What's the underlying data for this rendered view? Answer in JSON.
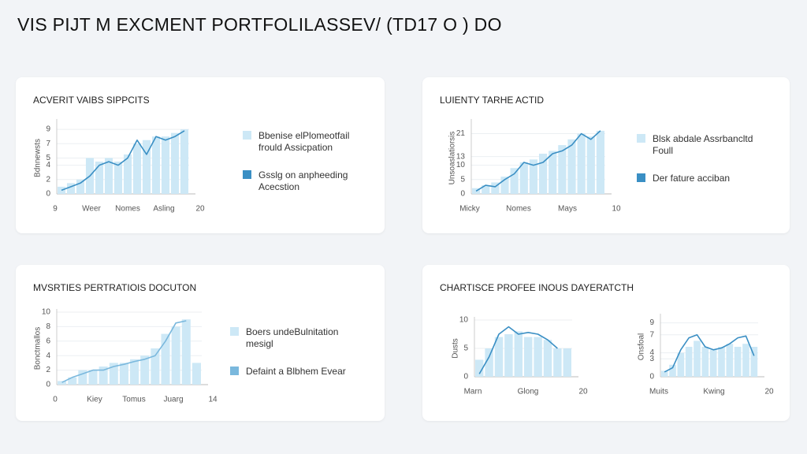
{
  "page_title": "VIS PIJT M EXCMENT PORTFOLILASSEV/ (TD17 O ) DO",
  "chart_data": [
    {
      "type": "bar_line",
      "title": "ACVERIT VAIBS SIPPCITS",
      "ylabel": "Bdnnewsts",
      "xtick_labels": [
        "9",
        "Weer",
        "Nomes",
        "Asling",
        "20"
      ],
      "ylim": [
        0,
        10
      ],
      "yticks": [
        0,
        2,
        4,
        5,
        7,
        9
      ],
      "series": [
        {
          "name": "Bbenise elPlomeotfail frould Assicpation",
          "color": "#cde8f6",
          "kind": "bar",
          "values": [
            1,
            1.5,
            2,
            5,
            4.5,
            5,
            4.5,
            5.5,
            7,
            7.5,
            8,
            8,
            8.5,
            9
          ]
        },
        {
          "name": "Gsslg on anpheeding Acecstion",
          "color": "#3a8fc4",
          "kind": "line",
          "values": [
            0.5,
            1,
            1.5,
            2.5,
            4,
            4.5,
            4,
            5,
            7.5,
            5.5,
            8,
            7.5,
            8,
            8.8
          ]
        }
      ]
    },
    {
      "type": "bar_line",
      "title": "LUIENTY TARHE ACTID",
      "ylabel": "Unsoaslatiorsis",
      "xtick_labels": [
        "Micky",
        "Nomes",
        "Mays",
        "10"
      ],
      "ylim": [
        0,
        25
      ],
      "yticks": [
        0,
        5,
        10,
        13,
        21
      ],
      "series": [
        {
          "name": "Blsk abdale Assrbancltd Foull",
          "color": "#cde8f6",
          "kind": "bar",
          "values": [
            2,
            3,
            4,
            6,
            9,
            11,
            12,
            14,
            15,
            17,
            19,
            21,
            20,
            22
          ]
        },
        {
          "name": "Der fature acciban",
          "color": "#3a8fc4",
          "kind": "line",
          "values": [
            1,
            3,
            2.5,
            5,
            7,
            11,
            10,
            11,
            14,
            15,
            17,
            21,
            19,
            22
          ]
        }
      ]
    },
    {
      "type": "bar_line",
      "title": "MVSRTIES PERTRATIOIS DOCUTON",
      "ylabel": "Bonctmallos",
      "xtick_labels": [
        "0",
        "Kiey",
        "Tomus",
        "Juarg",
        "14"
      ],
      "ylim": [
        0,
        10
      ],
      "yticks": [
        0,
        2,
        4,
        6,
        8,
        10
      ],
      "series": [
        {
          "name": "Boers undeBulnitation mesigl",
          "color": "#cde8f6",
          "kind": "bar",
          "values": [
            0.5,
            1,
            2,
            2,
            2.5,
            3,
            3,
            3.5,
            4,
            5,
            7,
            8,
            9,
            3
          ]
        },
        {
          "name": "Defaint a Blbhem Evear",
          "color": "#7ab8dd",
          "kind": "line",
          "values": [
            0.3,
            1,
            1.5,
            2,
            2,
            2.5,
            2.8,
            3.2,
            3.5,
            4,
            6,
            8.5,
            8.8,
            null
          ]
        }
      ]
    },
    {
      "type": "bar_line",
      "title": "CHARTISCE PROFEE INOUS DAYERATCTH",
      "ylabel": "Dusts",
      "xtick_labels": [
        "Marn",
        "Glong",
        "20"
      ],
      "ylim": [
        0,
        10
      ],
      "yticks": [
        0,
        5,
        10
      ],
      "series": [
        {
          "color": "#cde8f6",
          "kind": "bar",
          "values": [
            3,
            5,
            7,
            7.5,
            8,
            7,
            7,
            6.5,
            5,
            5
          ]
        },
        {
          "color": "#3a8fc4",
          "kind": "line",
          "values": [
            0.5,
            3.5,
            7.5,
            8.8,
            7.5,
            7.8,
            7.5,
            6.5,
            5,
            null
          ]
        }
      ]
    },
    {
      "type": "bar_line",
      "ylabel": "Onsfoal",
      "xtick_labels": [
        "Muits",
        "Kwing",
        "20"
      ],
      "ylim": [
        0,
        10
      ],
      "yticks": [
        0,
        3,
        4,
        7,
        9
      ],
      "series": [
        {
          "color": "#cde8f6",
          "kind": "bar",
          "values": [
            1,
            2,
            4,
            5,
            6,
            5,
            4.5,
            5,
            5.5,
            5,
            5.5,
            5
          ]
        },
        {
          "color": "#3a8fc4",
          "kind": "line",
          "values": [
            0.8,
            1.5,
            4.5,
            6.5,
            7,
            5,
            4.5,
            4.8,
            5.5,
            6.5,
            6.8,
            3.5
          ]
        }
      ]
    }
  ]
}
